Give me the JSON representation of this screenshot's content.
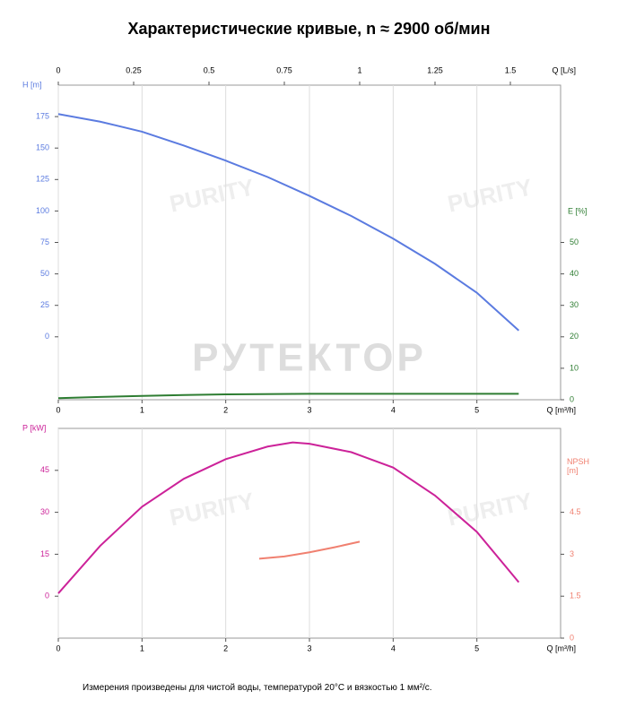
{
  "title": "Характеристические кривые, n ≈ 2900 об/мин",
  "footnote": "Измерения произведены для чистой воды, температурой 20°C и вязкостью 1 мм²/с.",
  "watermarks": [
    "РУТЕКТОР",
    "PURITY"
  ],
  "chart_data": [
    {
      "type": "line",
      "xlabel": "Q [m³/h]",
      "xlim": [
        0,
        6
      ],
      "xticks": [
        0,
        1,
        2,
        3,
        4,
        5
      ],
      "x2label": "Q [L/s]",
      "x2lim": [
        0,
        1.6667
      ],
      "x2ticks": [
        0,
        0.25,
        0.5,
        0.75,
        1,
        1.25,
        1.5
      ],
      "ylabel": "H [m]",
      "ylim": [
        -50,
        200
      ],
      "yticks": [
        0,
        25,
        50,
        75,
        100,
        125,
        150,
        175
      ],
      "y2label": "E [%]",
      "y2lim": [
        0,
        100
      ],
      "y2ticks": [
        0,
        10,
        20,
        30,
        40,
        50
      ],
      "grid": true,
      "series": [
        {
          "color": "#5b7be0",
          "x": [
            0,
            0.5,
            1,
            1.5,
            2,
            2.5,
            3,
            3.5,
            4,
            4.5,
            5,
            5.5
          ],
          "values": [
            177,
            171,
            163,
            152,
            140,
            127,
            112,
            96,
            78,
            58,
            35,
            5
          ]
        },
        {
          "color": "#2e7d32",
          "axis": "y2",
          "x": [
            0,
            0.5,
            1,
            1.5,
            2,
            3,
            4,
            5,
            5.5
          ],
          "values": [
            0.5,
            0.9,
            1.2,
            1.5,
            1.7,
            1.9,
            1.9,
            1.9,
            1.9
          ]
        }
      ]
    },
    {
      "type": "line",
      "xlabel": "Q [m³/h]",
      "xlim": [
        0,
        6
      ],
      "xticks": [
        0,
        1,
        2,
        3,
        4,
        5
      ],
      "ylabel": "P [kW]",
      "ylim": [
        -15,
        60
      ],
      "yticks": [
        0,
        15,
        30,
        45
      ],
      "y2label": "NPSH [m]",
      "y2lim": [
        0,
        7.5
      ],
      "y2ticks": [
        0,
        1.5,
        3,
        4.5
      ],
      "grid": true,
      "series": [
        {
          "color": "#cc2299",
          "x": [
            0,
            0.5,
            1,
            1.5,
            2,
            2.5,
            2.8,
            3,
            3.5,
            4,
            4.5,
            5,
            5.5
          ],
          "values": [
            1,
            18,
            32,
            42,
            49,
            53.5,
            55,
            54.5,
            51.5,
            46,
            36,
            23,
            5
          ]
        },
        {
          "color": "#f08070",
          "axis": "y2",
          "x": [
            2.4,
            2.7,
            3,
            3.3,
            3.6
          ],
          "values": [
            2.84,
            2.92,
            3.07,
            3.25,
            3.45
          ]
        }
      ]
    }
  ]
}
